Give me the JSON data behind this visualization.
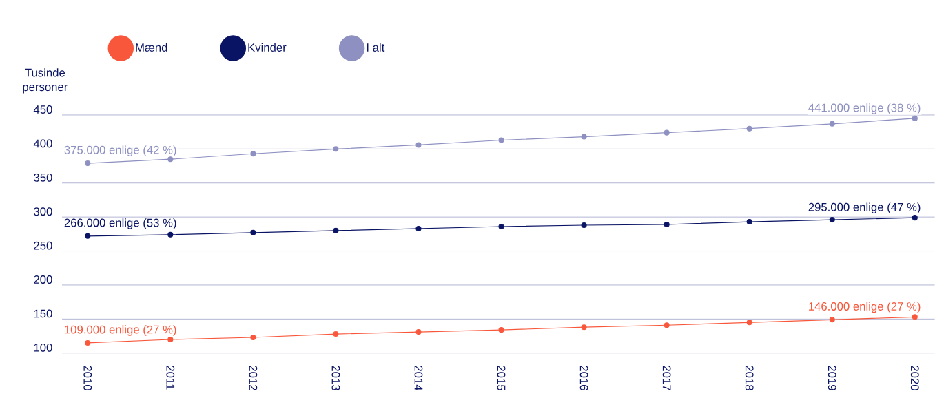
{
  "chart_data": {
    "type": "line",
    "ylabel": "Tusinde personer",
    "categories": [
      "2010",
      "2011",
      "2012",
      "2013",
      "2014",
      "2015",
      "2016",
      "2017",
      "2018",
      "2019",
      "2020"
    ],
    "series": [
      {
        "name": "Mænd",
        "color": "#f9573b",
        "values": [
          115,
          120,
          123,
          128,
          131,
          134,
          138,
          141,
          145,
          149,
          153
        ]
      },
      {
        "name": "Kvinder",
        "color": "#0a1464",
        "values": [
          272,
          274,
          277,
          280,
          283,
          286,
          288,
          289,
          293,
          296,
          299
        ]
      },
      {
        "name": "I alt",
        "color": "#8d90c0",
        "values": [
          379,
          385,
          393,
          400,
          406,
          413,
          418,
          424,
          430,
          437,
          445
        ]
      }
    ],
    "ylim": [
      100,
      450
    ],
    "yticks": [
      100,
      150,
      200,
      250,
      300,
      350,
      400,
      450
    ],
    "grid": "y",
    "legend": "top left",
    "marker": "circle",
    "line_style": "solid",
    "annotations": [
      {
        "text": "109.000 enlige (27 %)",
        "x": "2010",
        "y": 115
      },
      {
        "text": "146.000 enlige (27 %)",
        "x": "2020",
        "y": 153
      },
      {
        "text": "266.000 enlige (53 %)",
        "x": "2010",
        "y": 272
      },
      {
        "text": "295.000 enlige (47 %)",
        "x": "2020",
        "y": 299
      },
      {
        "text": "375.000 enlige (42 %)",
        "x": "2010",
        "y": 379
      },
      {
        "text": "441.000 enlige (38 %)",
        "x": "2020",
        "y": 445
      }
    ]
  }
}
